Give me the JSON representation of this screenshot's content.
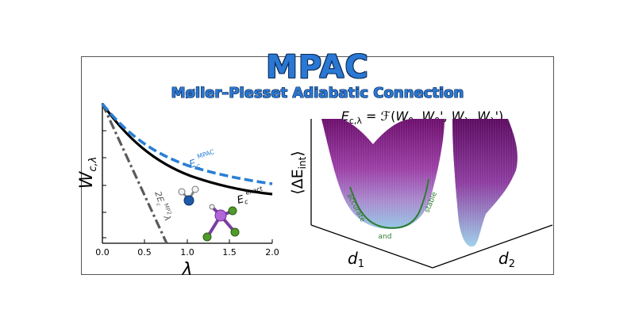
{
  "header": {
    "title": "MPAC",
    "subtitle": "Møller–Plesset Adiabatic Connection"
  },
  "left_panel": {
    "y_axis_label_main": "W",
    "y_axis_label_sub": "c,λ",
    "x_axis_label": "λ",
    "x_ticks": [
      "0.0",
      "0.5",
      "1.0",
      "1.5",
      "2.0"
    ],
    "curve_labels": {
      "mpac_main": "E",
      "mpac_sub": "c",
      "mpac_sup": "MPAC",
      "exact_main": "E",
      "exact_sub": "c",
      "exact_sup": "exact",
      "mp2_text": "2E",
      "mp2_sub": "c",
      "mp2_sup": "MP2",
      "mp2_tail": "λ"
    },
    "colors": {
      "mpac": "#2a7fd4",
      "exact": "#000000",
      "mp2": "#5a5a5a"
    }
  },
  "right_panel": {
    "formula": {
      "lhs_main": "E",
      "lhs_sub": "c,λ",
      "eq": " = ",
      "functional": "ℱ",
      "args": [
        "W",
        "0",
        "W",
        "0",
        "'",
        "W",
        "λ",
        "W",
        "λ",
        "'"
      ],
      "open": "(",
      "close": ")",
      "sep": ", "
    },
    "y_axis_label": "⟨ΔE",
    "y_axis_sub": "int",
    "y_axis_close": "⟩",
    "x1_label_main": "d",
    "x1_label_sub": "1",
    "x2_label_main": "d",
    "x2_label_sub": "2",
    "valley_labels": [
      "accurate",
      "and",
      "stable"
    ],
    "colors": {
      "surface_top": "#7a1a7a",
      "surface_mid": "#a26bc0",
      "surface_bottom": "#8fc1e3",
      "path": "#2e7d2e"
    }
  },
  "molecules": [
    {
      "name": "water",
      "atoms": [
        "O",
        "H",
        "H"
      ]
    },
    {
      "name": "pf3",
      "atoms": [
        "P",
        "F",
        "F",
        "F"
      ]
    }
  ]
}
